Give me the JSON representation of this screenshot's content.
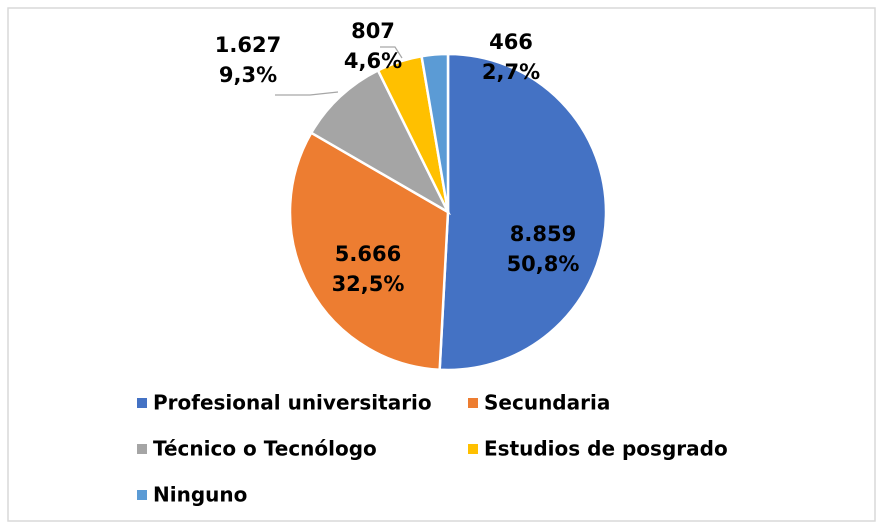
{
  "chart_data": {
    "type": "pie",
    "categories": [
      "Profesional universitario",
      "Secundaria",
      "Técnico o Tecnólogo",
      "Estudios de posgrado",
      "Ninguno"
    ],
    "values": [
      8859,
      5666,
      1627,
      807,
      466
    ],
    "value_labels": [
      "8.859",
      "5.666",
      "1.627",
      "807",
      "466"
    ],
    "percentages": [
      50.8,
      32.5,
      9.3,
      4.6,
      2.7
    ],
    "percentage_labels": [
      "50,8%",
      "32,5%",
      "9,3%",
      "4,6%",
      "2,7%"
    ],
    "colors": [
      "#4472c4",
      "#ed7d31",
      "#a5a5a5",
      "#ffc000",
      "#5b9bd5"
    ],
    "legend": "bottom"
  }
}
